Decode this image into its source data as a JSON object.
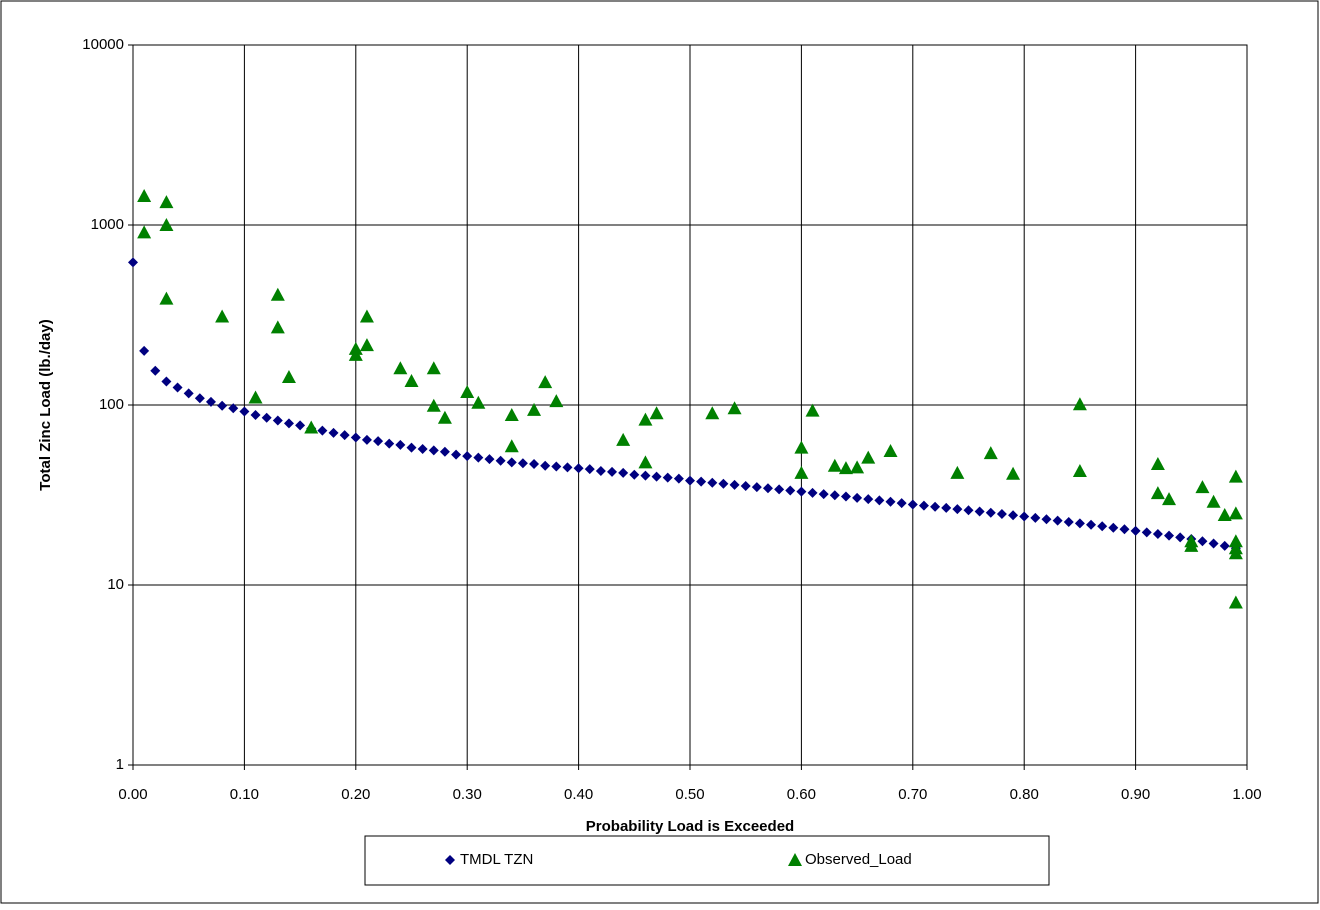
{
  "chart_data": {
    "type": "scatter",
    "x_label": "Probability Load is Exceeded",
    "y_label": "Total Zinc Load (lb./day)",
    "log_y": true,
    "grid": true,
    "legend": "bottom",
    "xlim": [
      0,
      1
    ],
    "ylim": [
      1,
      10000
    ],
    "xticks": [
      {
        "value": 0,
        "label": "0.00"
      },
      {
        "value": 0.1,
        "label": "0.10"
      },
      {
        "value": 0.2,
        "label": "0.20"
      },
      {
        "value": 0.3,
        "label": "0.30"
      },
      {
        "value": 0.4,
        "label": "0.40"
      },
      {
        "value": 0.5,
        "label": "0.50"
      },
      {
        "value": 0.6,
        "label": "0.60"
      },
      {
        "value": 0.7,
        "label": "0.70"
      },
      {
        "value": 0.8,
        "label": "0.80"
      },
      {
        "value": 0.9,
        "label": "0.90"
      },
      {
        "value": 1,
        "label": "1.00"
      }
    ],
    "yticks": [
      1,
      10,
      100,
      1000,
      10000
    ],
    "series": [
      {
        "name": "TMDL TZN",
        "color": "#000080",
        "marker": "diamond",
        "x": [
          0,
          0.01,
          0.02,
          0.03,
          0.04,
          0.05,
          0.06,
          0.07,
          0.08,
          0.09,
          0.1,
          0.11,
          0.12,
          0.13,
          0.14,
          0.15,
          0.16,
          0.17,
          0.18,
          0.19,
          0.2,
          0.21,
          0.22,
          0.23,
          0.24,
          0.25,
          0.26,
          0.27,
          0.28,
          0.29,
          0.3,
          0.31,
          0.32,
          0.33,
          0.34,
          0.35,
          0.36,
          0.37,
          0.38,
          0.39,
          0.4,
          0.41,
          0.42,
          0.43,
          0.44,
          0.45,
          0.46,
          0.47,
          0.48,
          0.49,
          0.5,
          0.51,
          0.52,
          0.53,
          0.54,
          0.55,
          0.56,
          0.57,
          0.58,
          0.59,
          0.6,
          0.61,
          0.62,
          0.63,
          0.64,
          0.65,
          0.66,
          0.67,
          0.68,
          0.69,
          0.7,
          0.71,
          0.72,
          0.73,
          0.74,
          0.75,
          0.76,
          0.77,
          0.78,
          0.79,
          0.8,
          0.81,
          0.82,
          0.83,
          0.84,
          0.85,
          0.86,
          0.87,
          0.88,
          0.89,
          0.9,
          0.91,
          0.92,
          0.93,
          0.94,
          0.95,
          0.96,
          0.97,
          0.98,
          0.99
        ],
        "values": [
          620,
          200,
          155,
          135,
          125,
          116,
          109,
          104,
          99,
          96,
          92,
          88,
          85,
          82,
          79,
          77,
          74,
          72,
          70,
          68,
          66,
          64,
          63,
          61,
          60,
          58,
          57,
          56,
          55,
          53,
          52,
          51,
          50,
          49,
          48,
          47.5,
          47,
          46,
          45.5,
          45,
          44.5,
          44,
          43,
          42.5,
          42,
          41,
          40.5,
          40,
          39.5,
          39,
          38,
          37.5,
          37,
          36.5,
          36,
          35.5,
          35,
          34.5,
          34,
          33.5,
          33,
          32.5,
          32,
          31.5,
          31,
          30.5,
          30,
          29.5,
          29,
          28.5,
          28,
          27.6,
          27.2,
          26.8,
          26.4,
          26,
          25.6,
          25.2,
          24.8,
          24.4,
          24,
          23.6,
          23.2,
          22.8,
          22.4,
          22,
          21.6,
          21.2,
          20.8,
          20.4,
          20,
          19.6,
          19.2,
          18.8,
          18.4,
          18,
          17.5,
          17,
          16.5,
          16
        ]
      },
      {
        "name": "Observed_Load",
        "color": "#008000",
        "marker": "triangle",
        "x": [
          0.01,
          0.01,
          0.03,
          0.03,
          0.03,
          0.08,
          0.11,
          0.13,
          0.13,
          0.14,
          0.16,
          0.2,
          0.2,
          0.21,
          0.21,
          0.24,
          0.25,
          0.27,
          0.27,
          0.28,
          0.3,
          0.31,
          0.34,
          0.34,
          0.36,
          0.37,
          0.38,
          0.44,
          0.46,
          0.46,
          0.47,
          0.52,
          0.54,
          0.6,
          0.6,
          0.61,
          0.63,
          0.64,
          0.65,
          0.66,
          0.68,
          0.74,
          0.77,
          0.79,
          0.85,
          0.85,
          0.92,
          0.92,
          0.93,
          0.95,
          0.95,
          0.96,
          0.97,
          0.98,
          0.99,
          0.99,
          0.99,
          0.99,
          0.99,
          0.99
        ],
        "values": [
          1450,
          910,
          1340,
          1000,
          390,
          310,
          110,
          410,
          270,
          143,
          75,
          205,
          190,
          310,
          215,
          160,
          136,
          160,
          99,
          85,
          118,
          103,
          88,
          59,
          94,
          134,
          105,
          64,
          83,
          48,
          90,
          90,
          96,
          58,
          42,
          93,
          46,
          44.6,
          45,
          51,
          55.5,
          42,
          54,
          41.5,
          101,
          43,
          47,
          32.4,
          30,
          17.5,
          16.5,
          35,
          29,
          24.5,
          40,
          25,
          17.5,
          16,
          15,
          8
        ]
      }
    ]
  }
}
